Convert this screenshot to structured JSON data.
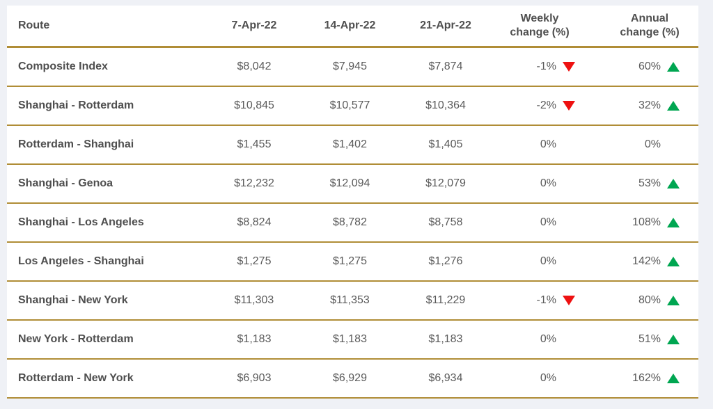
{
  "chart_data": {
    "type": "table",
    "columns": [
      "Route",
      "7-Apr-22",
      "14-Apr-22",
      "21-Apr-22",
      "Weekly change (%)",
      "Annual change (%)"
    ],
    "rows": [
      {
        "route": "Composite Index",
        "prices": [
          "$8,042",
          "$7,945",
          "$7,874"
        ],
        "weekly_change": {
          "label": "-1%",
          "direction": "down"
        },
        "annual_change": {
          "label": "60%",
          "direction": "up"
        }
      },
      {
        "route": "Shanghai - Rotterdam",
        "prices": [
          "$10,845",
          "$10,577",
          "$10,364"
        ],
        "weekly_change": {
          "label": "-2%",
          "direction": "down"
        },
        "annual_change": {
          "label": "32%",
          "direction": "up"
        }
      },
      {
        "route": "Rotterdam - Shanghai",
        "prices": [
          "$1,455",
          "$1,402",
          "$1,405"
        ],
        "weekly_change": {
          "label": "0%",
          "direction": "none"
        },
        "annual_change": {
          "label": "0%",
          "direction": "none"
        }
      },
      {
        "route": "Shanghai - Genoa",
        "prices": [
          "$12,232",
          "$12,094",
          "$12,079"
        ],
        "weekly_change": {
          "label": "0%",
          "direction": "none"
        },
        "annual_change": {
          "label": "53%",
          "direction": "up"
        }
      },
      {
        "route": "Shanghai - Los Angeles",
        "prices": [
          "$8,824",
          "$8,782",
          "$8,758"
        ],
        "weekly_change": {
          "label": "0%",
          "direction": "none"
        },
        "annual_change": {
          "label": "108%",
          "direction": "up"
        }
      },
      {
        "route": "Los Angeles - Shanghai",
        "prices": [
          "$1,275",
          "$1,275",
          "$1,276"
        ],
        "weekly_change": {
          "label": "0%",
          "direction": "none"
        },
        "annual_change": {
          "label": "142%",
          "direction": "up"
        }
      },
      {
        "route": "Shanghai - New York",
        "prices": [
          "$11,303",
          "$11,353",
          "$11,229"
        ],
        "weekly_change": {
          "label": "-1%",
          "direction": "down"
        },
        "annual_change": {
          "label": "80%",
          "direction": "up"
        }
      },
      {
        "route": "New York - Rotterdam",
        "prices": [
          "$1,183",
          "$1,183",
          "$1,183"
        ],
        "weekly_change": {
          "label": "0%",
          "direction": "none"
        },
        "annual_change": {
          "label": "51%",
          "direction": "up"
        }
      },
      {
        "route": "Rotterdam - New York",
        "prices": [
          "$6,903",
          "$6,929",
          "$6,934"
        ],
        "weekly_change": {
          "label": "0%",
          "direction": "none"
        },
        "annual_change": {
          "label": "162%",
          "direction": "up"
        }
      }
    ],
    "layout": {
      "legend": "none",
      "grid": "horizontal gold separator lines between rows",
      "value_alignment": "prices centered, change values right-aligned with trend triangle"
    }
  },
  "colors": {
    "separator_gold": "#b08d36",
    "positive_green": "#00a651",
    "negative_red": "#ee1111",
    "header_text": "#4f4f4f",
    "value_text": "#5a5a5a",
    "page_background": "#eff1f6",
    "table_background": "#ffffff"
  }
}
